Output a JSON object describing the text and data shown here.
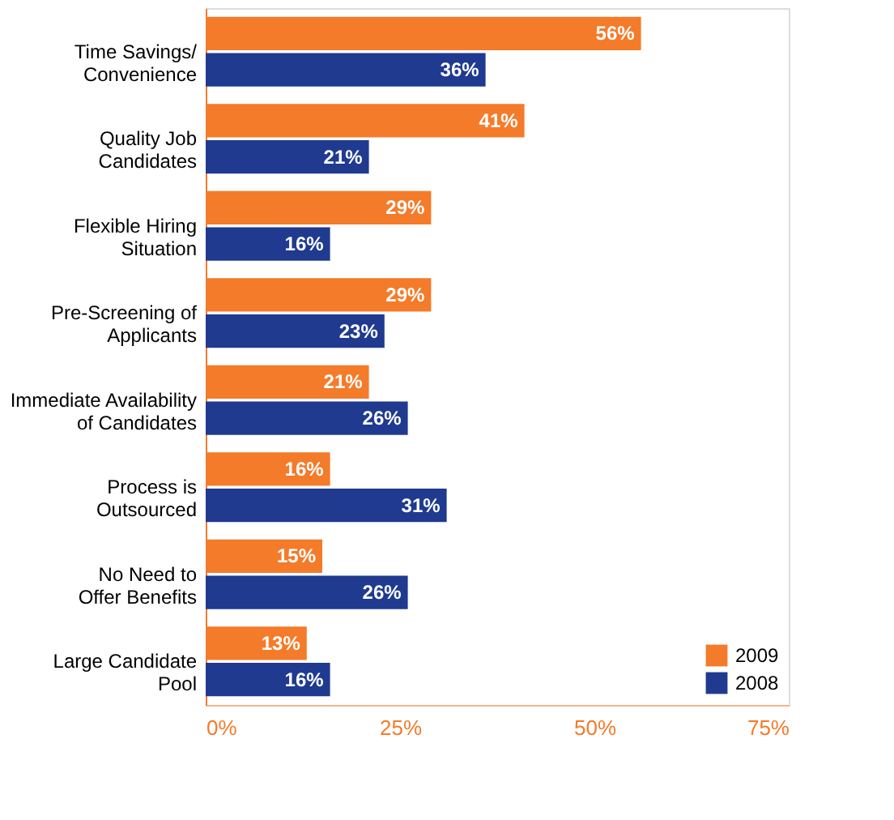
{
  "chart_data": {
    "type": "bar",
    "orientation": "horizontal",
    "categories": [
      "Time Savings/\nConvenience",
      "Quality Job\nCandidates",
      "Flexible Hiring\nSituation",
      "Pre-Screening of\nApplicants",
      "Immediate Availability\nof Candidates",
      "Process is\nOutsourced",
      "No Need to\nOffer Benefits",
      "Large Candidate\nPool"
    ],
    "series": [
      {
        "name": "2009",
        "color": "#f47b2a",
        "values": [
          56,
          41,
          29,
          29,
          21,
          16,
          15,
          13
        ],
        "value_labels": [
          "56%",
          "41%",
          "29%",
          "29%",
          "21%",
          "16%",
          "15%",
          "13%"
        ]
      },
      {
        "name": "2008",
        "color": "#1f3a8f",
        "values": [
          36,
          21,
          16,
          23,
          26,
          31,
          26,
          16
        ],
        "value_labels": [
          "36%",
          "21%",
          "16%",
          "23%",
          "26%",
          "31%",
          "26%",
          "16%"
        ]
      }
    ],
    "xlim": [
      0,
      75
    ],
    "xticks": [
      {
        "value": 0,
        "label": "0%"
      },
      {
        "value": 25,
        "label": "25%"
      },
      {
        "value": 50,
        "label": "50%"
      },
      {
        "value": 75,
        "label": "75%"
      }
    ],
    "grid": false,
    "legend": "bottom right"
  }
}
